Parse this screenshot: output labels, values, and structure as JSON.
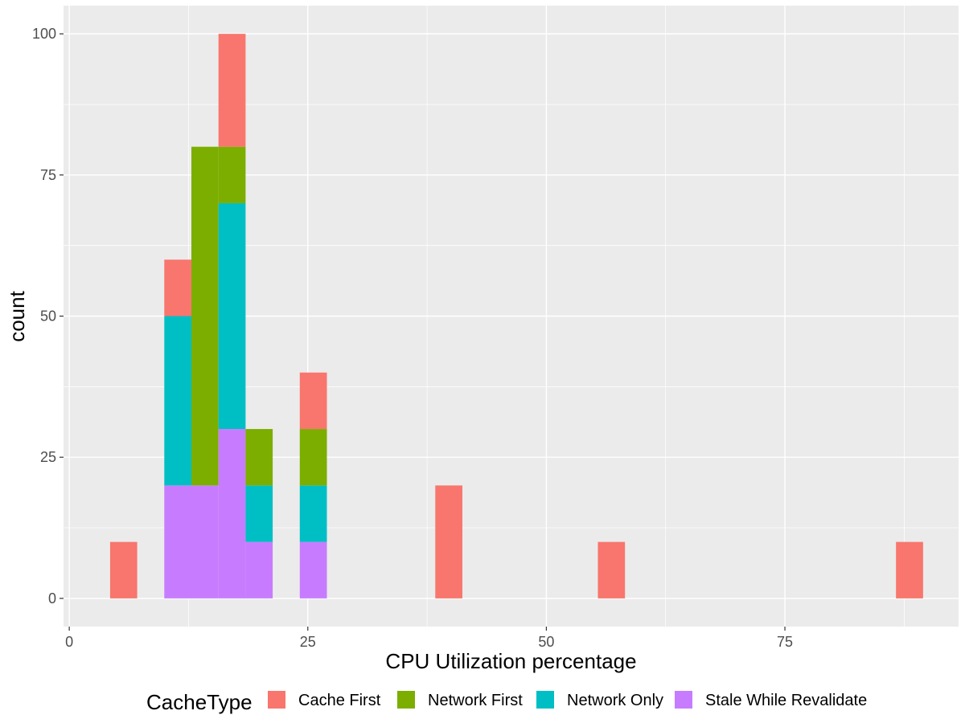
{
  "chart_data": {
    "type": "bar",
    "stacked": true,
    "xlabel": "CPU Utilization percentage",
    "ylabel": "count",
    "xlim": [
      -0.6,
      93.2
    ],
    "ylim": [
      -5,
      105
    ],
    "x_ticks": [
      0,
      25,
      50,
      75
    ],
    "y_ticks": [
      0,
      25,
      50,
      75,
      100
    ],
    "grid": true,
    "legend_position": "bottom",
    "legend_title": "CacheType",
    "bin_width": 2.84,
    "bin_starts": [
      4.28,
      9.96,
      12.8,
      15.64,
      18.48,
      24.16,
      38.36,
      55.4,
      86.64
    ],
    "series": [
      {
        "name": "Stale While Revalidate",
        "color": "#C77CFF",
        "values": [
          0,
          20,
          20,
          30,
          10,
          10,
          0,
          0,
          0
        ]
      },
      {
        "name": "Network Only",
        "color": "#00BFC4",
        "values": [
          0,
          30,
          0,
          40,
          10,
          10,
          0,
          0,
          0
        ]
      },
      {
        "name": "Network First",
        "color": "#7CAE00",
        "values": [
          0,
          0,
          60,
          10,
          10,
          10,
          0,
          0,
          0
        ]
      },
      {
        "name": "Cache First",
        "color": "#F8766D",
        "values": [
          10,
          10,
          0,
          20,
          0,
          10,
          20,
          10,
          10
        ]
      }
    ],
    "legend_order": [
      "Cache First",
      "Network First",
      "Network Only",
      "Stale While Revalidate"
    ],
    "panel_background": "#EBEBEB",
    "grid_color": "#FFFFFF"
  }
}
